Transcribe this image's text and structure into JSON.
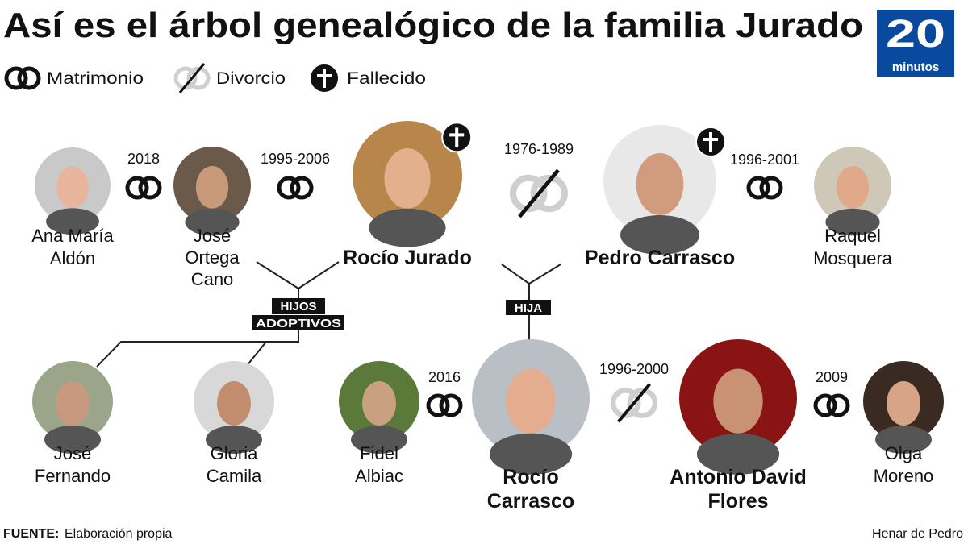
{
  "title": "Así es el árbol genealógico de la familia Jurado",
  "logo": {
    "number": "20",
    "word": "minutos",
    "color": "#0a4a9e"
  },
  "legend": [
    {
      "icon": "wedding-rings-icon",
      "label": "Matrimonio"
    },
    {
      "icon": "divorce-rings-icon",
      "label": "Divorcio"
    },
    {
      "icon": "cross-icon",
      "label": "Fallecido"
    }
  ],
  "people": {
    "ana": {
      "lines": [
        "Ana María",
        "Aldón"
      ]
    },
    "jose_ortega": {
      "lines": [
        "José",
        "Ortega",
        "Cano"
      ]
    },
    "rocio_jurado": {
      "lines": [
        "Rocío Jurado"
      ],
      "deceased": true
    },
    "pedro": {
      "lines": [
        "Pedro Carrasco"
      ],
      "deceased": true
    },
    "raquel": {
      "lines": [
        "Raquel",
        "Mosquera"
      ]
    },
    "jose_fernando": {
      "lines": [
        "José",
        "Fernando"
      ]
    },
    "gloria": {
      "lines": [
        "Gloria",
        "Camila"
      ]
    },
    "fidel": {
      "lines": [
        "Fidel",
        "Albiac"
      ]
    },
    "rocio_carrasco": {
      "lines": [
        "Rocío",
        "Carrasco"
      ]
    },
    "antonio": {
      "lines": [
        "Antonio David",
        "Flores"
      ]
    },
    "olga": {
      "lines": [
        "Olga",
        "Moreno"
      ]
    }
  },
  "relations": [
    {
      "years": "2018",
      "type": "matrimonio"
    },
    {
      "years": "1995-2006",
      "type": "matrimonio"
    },
    {
      "years": "1976-1989",
      "type": "divorcio"
    },
    {
      "years": "1996-2001",
      "type": "matrimonio"
    },
    {
      "years": "2016",
      "type": "matrimonio"
    },
    {
      "years": "1996-2000",
      "type": "divorcio"
    },
    {
      "years": "2009",
      "type": "matrimonio"
    }
  ],
  "tags": {
    "adopted_1": "HIJOS",
    "adopted_2": "ADOPTIVOS",
    "daughter": "HIJA"
  },
  "footer": {
    "source_label": "FUENTE:",
    "source_text": " Elaboración propia",
    "author": "Henar de Pedro"
  },
  "colors": {
    "divorce_gray": "#cfcfcf",
    "ink": "#111111"
  }
}
